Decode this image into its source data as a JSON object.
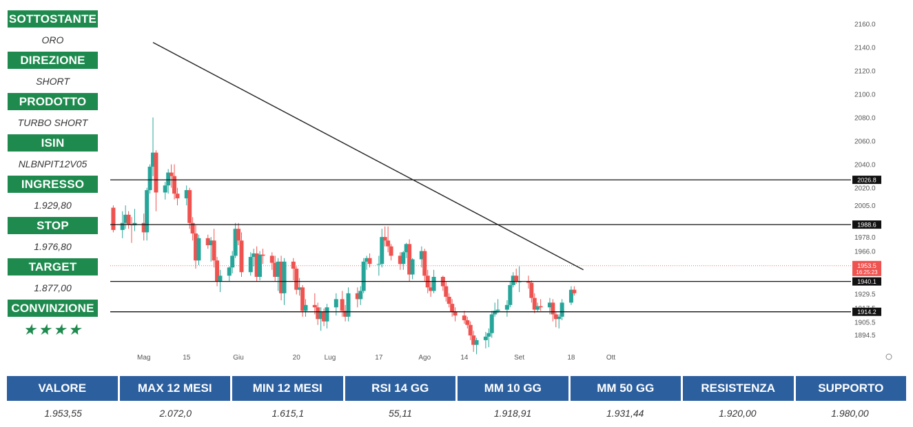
{
  "sidebar": [
    {
      "label": "SOTTOSTANTE",
      "value": "ORO"
    },
    {
      "label": "DIREZIONE",
      "value": "SHORT"
    },
    {
      "label": "PRODOTTO",
      "value": "TURBO SHORT"
    },
    {
      "label": "ISIN",
      "value": "NLBNPIT12V05"
    },
    {
      "label": "INGRESSO",
      "value": "1.929,80"
    },
    {
      "label": "STOP",
      "value": "1.976,80"
    },
    {
      "label": "TARGET",
      "value": "1.877,00"
    },
    {
      "label": "CONVINZIONE",
      "value": "★★★★"
    }
  ],
  "stats": {
    "headers": [
      "VALORE",
      "MAX 12 MESI",
      "MIN 12 MESI",
      "RSI 14 GG",
      "MM 10 GG",
      "MM 50 GG",
      "RESISTENZA",
      "SUPPORTO"
    ],
    "values": [
      "1.953,55",
      "2.072,0",
      "1.615,1",
      "55,11",
      "1.918,91",
      "1.931,44",
      "1.920,00",
      "1.980,00"
    ]
  },
  "colors": {
    "up": "#26a69a",
    "down": "#ef5350",
    "sidebar": "#1e8a4e",
    "table_header": "#2c5f9e"
  },
  "chart_data": {
    "type": "candlestick",
    "x_ticks": [
      "Mag",
      "15",
      "Giu",
      "20",
      "Lug",
      "17",
      "Ago",
      "14",
      "Set",
      "18",
      "Ott"
    ],
    "y_ticks": [
      "2160.0",
      "2140.0",
      "2120.0",
      "2100.0",
      "2080.0",
      "2060.0",
      "2040.0",
      "2020.0",
      "2005.0",
      "1978.0",
      "1966.0",
      "1929.5",
      "1917.5",
      "1905.5",
      "1894.5"
    ],
    "ylim": [
      1887,
      2172
    ],
    "last_price": {
      "value": 1953.5,
      "label": "1953.5",
      "countdown": "16:25:23"
    },
    "horizontal_levels": [
      {
        "value": 2026.8,
        "label": "2026.8"
      },
      {
        "value": 1988.6,
        "label": "1988.6"
      },
      {
        "value": 1940.1,
        "label": "1940.1"
      },
      {
        "value": 1914.2,
        "label": "1914.2"
      }
    ],
    "trendline": {
      "start": {
        "date": "2023-05-04",
        "value": 2144
      },
      "end": {
        "date": "2023-09-22",
        "value": 1950
      }
    },
    "candles": [
      [
        "2023-04-21",
        2003,
        2005,
        1982,
        1984
      ],
      [
        "2023-04-24",
        1984,
        2000,
        1977,
        1990
      ],
      [
        "2023-04-25",
        1990,
        2005,
        1985,
        1997
      ],
      [
        "2023-04-26",
        1997,
        2000,
        1985,
        1989
      ],
      [
        "2023-04-27",
        1989,
        1995,
        1973,
        1988
      ],
      [
        "2023-04-28",
        1988,
        2002,
        1983,
        1990
      ],
      [
        "2023-05-01",
        1990,
        1998,
        1975,
        1982
      ],
      [
        "2023-05-02",
        1982,
        2020,
        1975,
        2018
      ],
      [
        "2023-05-03",
        2018,
        2040,
        2015,
        2038
      ],
      [
        "2023-05-04",
        2038,
        2080,
        2030,
        2050
      ],
      [
        "2023-05-05",
        2050,
        2052,
        2000,
        2016
      ],
      [
        "2023-05-08",
        2016,
        2025,
        2010,
        2022
      ],
      [
        "2023-05-09",
        2022,
        2036,
        2015,
        2033
      ],
      [
        "2023-05-10",
        2033,
        2040,
        2020,
        2030
      ],
      [
        "2023-05-11",
        2030,
        2040,
        2010,
        2015
      ],
      [
        "2023-05-12",
        2015,
        2020,
        2005,
        2011
      ],
      [
        "2023-05-15",
        2011,
        2022,
        2005,
        2018
      ],
      [
        "2023-05-16",
        2018,
        2020,
        1985,
        1990
      ],
      [
        "2023-05-17",
        1990,
        1995,
        1975,
        1981
      ],
      [
        "2023-05-18",
        1981,
        1988,
        1951,
        1958
      ],
      [
        "2023-05-19",
        1958,
        1980,
        1954,
        1977
      ],
      [
        "2023-05-22",
        1977,
        1980,
        1968,
        1971
      ],
      [
        "2023-05-23",
        1971,
        1978,
        1957,
        1975
      ],
      [
        "2023-05-24",
        1975,
        1985,
        1952,
        1958
      ],
      [
        "2023-05-25",
        1958,
        1961,
        1936,
        1940
      ],
      [
        "2023-05-26",
        1940,
        1950,
        1931,
        1945
      ],
      [
        "2023-05-29",
        1945,
        1953,
        1940,
        1952
      ],
      [
        "2023-05-30",
        1952,
        1966,
        1947,
        1962
      ],
      [
        "2023-05-31",
        1962,
        1990,
        1960,
        1985
      ],
      [
        "2023-06-01",
        1985,
        1990,
        1971,
        1975
      ],
      [
        "2023-06-02",
        1975,
        1982,
        1944,
        1948
      ],
      [
        "2023-06-05",
        1948,
        1965,
        1945,
        1961
      ],
      [
        "2023-06-06",
        1961,
        1968,
        1953,
        1964
      ],
      [
        "2023-06-07",
        1964,
        1970,
        1940,
        1944
      ],
      [
        "2023-06-08",
        1944,
        1966,
        1941,
        1963
      ],
      [
        "2023-06-09",
        1963,
        1968,
        1955,
        1962
      ],
      [
        "2023-06-12",
        1962,
        1965,
        1950,
        1956
      ],
      [
        "2023-06-13",
        1956,
        1962,
        1940,
        1944
      ],
      [
        "2023-06-14",
        1944,
        1960,
        1932,
        1957
      ],
      [
        "2023-06-15",
        1957,
        1962,
        1924,
        1930
      ],
      [
        "2023-06-16",
        1930,
        1960,
        1920,
        1957
      ],
      [
        "2023-06-19",
        1957,
        1960,
        1941,
        1951
      ],
      [
        "2023-06-20",
        1951,
        1953,
        1929,
        1933
      ],
      [
        "2023-06-21",
        1933,
        1943,
        1928,
        1935
      ],
      [
        "2023-06-22",
        1935,
        1937,
        1910,
        1915
      ],
      [
        "2023-06-23",
        1915,
        1925,
        1910,
        1920
      ],
      [
        "2023-06-26",
        1920,
        1930,
        1912,
        1918
      ],
      [
        "2023-06-27",
        1918,
        1922,
        1903,
        1908
      ],
      [
        "2023-06-28",
        1908,
        1918,
        1898,
        1914
      ],
      [
        "2023-06-29",
        1914,
        1917,
        1902,
        1906
      ],
      [
        "2023-06-30",
        1906,
        1921,
        1900,
        1918
      ],
      [
        "2023-07-03",
        1918,
        1930,
        1911,
        1925
      ],
      [
        "2023-07-05",
        1925,
        1932,
        1910,
        1915
      ],
      [
        "2023-07-06",
        1915,
        1920,
        1906,
        1910
      ],
      [
        "2023-07-07",
        1910,
        1935,
        1906,
        1930
      ],
      [
        "2023-07-10",
        1930,
        1935,
        1918,
        1925
      ],
      [
        "2023-07-11",
        1925,
        1936,
        1920,
        1932
      ],
      [
        "2023-07-12",
        1932,
        1960,
        1930,
        1957
      ],
      [
        "2023-07-13",
        1957,
        1962,
        1950,
        1960
      ],
      [
        "2023-07-14",
        1960,
        1964,
        1952,
        1955
      ],
      [
        "2023-07-17",
        1955,
        1962,
        1945,
        1955
      ],
      [
        "2023-07-18",
        1955,
        1985,
        1952,
        1978
      ],
      [
        "2023-07-19",
        1978,
        1987,
        1970,
        1975
      ],
      [
        "2023-07-20",
        1975,
        1987,
        1965,
        1970
      ],
      [
        "2023-07-21",
        1970,
        1972,
        1958,
        1962
      ],
      [
        "2023-07-24",
        1962,
        1965,
        1950,
        1955
      ],
      [
        "2023-07-25",
        1955,
        1966,
        1950,
        1965
      ],
      [
        "2023-07-26",
        1965,
        1973,
        1960,
        1972
      ],
      [
        "2023-07-27",
        1972,
        1976,
        1940,
        1946
      ],
      [
        "2023-07-28",
        1946,
        1960,
        1942,
        1959
      ],
      [
        "2023-07-31",
        1959,
        1970,
        1952,
        1966
      ],
      [
        "2023-08-01",
        1966,
        1968,
        1940,
        1945
      ],
      [
        "2023-08-02",
        1945,
        1950,
        1930,
        1935
      ],
      [
        "2023-08-03",
        1935,
        1940,
        1927,
        1932
      ],
      [
        "2023-08-04",
        1932,
        1950,
        1930,
        1944
      ],
      [
        "2023-08-07",
        1944,
        1945,
        1932,
        1936
      ],
      [
        "2023-08-08",
        1936,
        1940,
        1923,
        1927
      ],
      [
        "2023-08-09",
        1927,
        1930,
        1918,
        1921
      ],
      [
        "2023-08-10",
        1921,
        1925,
        1910,
        1914
      ],
      [
        "2023-08-11",
        1914,
        1918,
        1906,
        1911
      ],
      [
        "2023-08-14",
        1911,
        1915,
        1904,
        1907
      ],
      [
        "2023-08-15",
        1907,
        1910,
        1900,
        1903
      ],
      [
        "2023-08-16",
        1903,
        1906,
        1890,
        1894
      ],
      [
        "2023-08-17",
        1894,
        1898,
        1880,
        1886
      ],
      [
        "2023-08-18",
        1886,
        1892,
        1878,
        1890
      ],
      [
        "2023-08-21",
        1890,
        1897,
        1883,
        1893
      ],
      [
        "2023-08-22",
        1893,
        1900,
        1884,
        1896
      ],
      [
        "2023-08-23",
        1896,
        1915,
        1892,
        1912
      ],
      [
        "2023-08-24",
        1912,
        1922,
        1910,
        1915
      ],
      [
        "2023-08-25",
        1915,
        1925,
        1913,
        1916
      ],
      [
        "2023-08-28",
        1916,
        1924,
        1910,
        1920
      ],
      [
        "2023-08-29",
        1920,
        1940,
        1918,
        1937
      ],
      [
        "2023-08-30",
        1937,
        1948,
        1935,
        1945
      ],
      [
        "2023-08-31",
        1945,
        1951,
        1938,
        1940
      ],
      [
        "2023-09-01",
        1940,
        1953,
        1931,
        1940
      ],
      [
        "2023-09-04",
        1940,
        1945,
        1934,
        1939
      ],
      [
        "2023-09-05",
        1939,
        1941,
        1922,
        1926
      ],
      [
        "2023-09-06",
        1926,
        1930,
        1913,
        1916
      ],
      [
        "2023-09-07",
        1916,
        1922,
        1914,
        1919
      ],
      [
        "2023-09-08",
        1919,
        1925,
        1915,
        1918
      ],
      [
        "2023-09-11",
        1918,
        1926,
        1912,
        1922
      ],
      [
        "2023-09-12",
        1922,
        1925,
        1906,
        1912
      ],
      [
        "2023-09-13",
        1912,
        1914,
        1901,
        1908
      ],
      [
        "2023-09-14",
        1908,
        1912,
        1900,
        1910
      ],
      [
        "2023-09-15",
        1910,
        1925,
        1907,
        1922
      ],
      [
        "2023-09-18",
        1922,
        1936,
        1920,
        1933
      ],
      [
        "2023-09-19",
        1933,
        1936,
        1928,
        1930
      ]
    ]
  }
}
